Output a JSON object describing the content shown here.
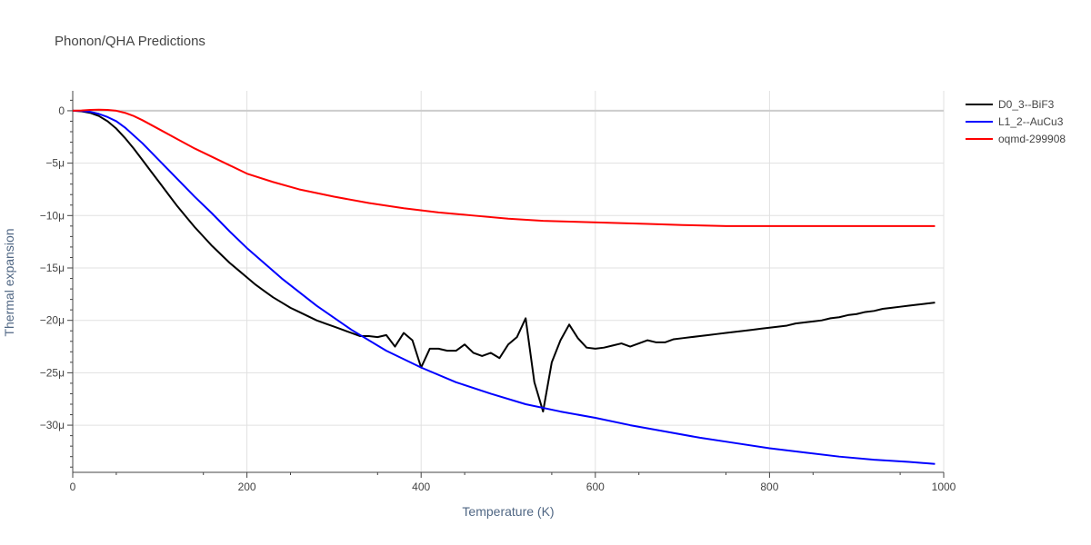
{
  "chart_data": {
    "type": "line",
    "title": "Phonon/QHA Predictions",
    "xlabel": "Temperature (K)",
    "ylabel": "Thermal expansion",
    "xlim": [
      0,
      1000
    ],
    "ylim": [
      -34.5,
      1.9
    ],
    "x_ticks": [
      {
        "value": 0,
        "label": "0"
      },
      {
        "value": 200,
        "label": "200"
      },
      {
        "value": 400,
        "label": "400"
      },
      {
        "value": 600,
        "label": "600"
      },
      {
        "value": 800,
        "label": "800"
      },
      {
        "value": 1000,
        "label": "1000"
      }
    ],
    "y_ticks": [
      {
        "value": 0,
        "label": "0"
      },
      {
        "value": -5,
        "label": "−5μ"
      },
      {
        "value": -10,
        "label": "−10μ"
      },
      {
        "value": -15,
        "label": "−15μ"
      },
      {
        "value": -20,
        "label": "−20μ"
      },
      {
        "value": -25,
        "label": "−25μ"
      },
      {
        "value": -30,
        "label": "−30μ"
      }
    ],
    "grid": true,
    "legend_position": "top-right",
    "series": [
      {
        "name": "D0_3--BiF3",
        "color": "#000000",
        "x": [
          0,
          10,
          20,
          30,
          40,
          50,
          60,
          70,
          80,
          90,
          100,
          110,
          120,
          130,
          140,
          150,
          160,
          170,
          180,
          190,
          200,
          210,
          220,
          230,
          240,
          250,
          260,
          270,
          280,
          290,
          300,
          310,
          320,
          330,
          340,
          350,
          360,
          370,
          380,
          390,
          400,
          410,
          420,
          430,
          440,
          450,
          460,
          470,
          480,
          490,
          500,
          510,
          520,
          530,
          540,
          550,
          560,
          570,
          580,
          590,
          600,
          610,
          620,
          630,
          640,
          650,
          660,
          670,
          680,
          690,
          700,
          710,
          720,
          730,
          740,
          750,
          760,
          770,
          780,
          790,
          800,
          810,
          820,
          830,
          840,
          850,
          860,
          870,
          880,
          890,
          900,
          910,
          920,
          930,
          940,
          950,
          960,
          970,
          980,
          990
        ],
        "values": [
          0,
          -0.05,
          -0.2,
          -0.5,
          -1.0,
          -1.7,
          -2.6,
          -3.6,
          -4.7,
          -5.8,
          -6.9,
          -8.0,
          -9.1,
          -10.1,
          -11.1,
          -12.0,
          -12.9,
          -13.7,
          -14.5,
          -15.2,
          -15.9,
          -16.6,
          -17.2,
          -17.8,
          -18.3,
          -18.8,
          -19.2,
          -19.6,
          -20.0,
          -20.3,
          -20.6,
          -20.9,
          -21.2,
          -21.5,
          -21.5,
          -21.6,
          -21.4,
          -22.5,
          -21.2,
          -21.9,
          -24.5,
          -22.7,
          -22.7,
          -22.9,
          -22.9,
          -22.3,
          -23.1,
          -23.4,
          -23.1,
          -23.6,
          -22.3,
          -21.6,
          -19.8,
          -25.9,
          -28.7,
          -24.0,
          -21.9,
          -20.4,
          -21.7,
          -22.6,
          -22.7,
          -22.6,
          -22.4,
          -22.2,
          -22.5,
          -22.2,
          -21.9,
          -22.1,
          -22.1,
          -21.8,
          -21.7,
          -21.6,
          -21.5,
          -21.4,
          -21.3,
          -21.2,
          -21.1,
          -21.0,
          -20.9,
          -20.8,
          -20.7,
          -20.6,
          -20.5,
          -20.3,
          -20.2,
          -20.1,
          -20.0,
          -19.8,
          -19.7,
          -19.5,
          -19.4,
          -19.2,
          -19.1,
          -18.9,
          -18.8,
          -18.7,
          -18.6,
          -18.5,
          -18.4,
          -18.3
        ]
      },
      {
        "name": "L1_2--AuCu3",
        "color": "#0000ff",
        "x": [
          0,
          10,
          20,
          30,
          40,
          50,
          60,
          80,
          100,
          120,
          140,
          160,
          180,
          200,
          240,
          280,
          320,
          360,
          400,
          440,
          480,
          520,
          560,
          600,
          640,
          680,
          720,
          760,
          800,
          840,
          880,
          920,
          960,
          990
        ],
        "values": [
          0,
          -0.02,
          -0.1,
          -0.3,
          -0.6,
          -1.0,
          -1.6,
          -3.1,
          -4.8,
          -6.5,
          -8.2,
          -9.8,
          -11.5,
          -13.1,
          -16.0,
          -18.6,
          -20.9,
          -22.9,
          -24.5,
          -25.9,
          -27.0,
          -28.0,
          -28.7,
          -29.3,
          -30.0,
          -30.6,
          -31.2,
          -31.7,
          -32.2,
          -32.6,
          -33.0,
          -33.3,
          -33.5,
          -33.7
        ]
      },
      {
        "name": "oqmd-299908",
        "color": "#ff0000",
        "x": [
          0,
          10,
          20,
          30,
          40,
          50,
          60,
          70,
          80,
          100,
          120,
          140,
          160,
          180,
          200,
          230,
          260,
          300,
          340,
          380,
          420,
          460,
          500,
          540,
          580,
          620,
          660,
          700,
          750,
          800,
          850,
          900,
          950,
          990
        ],
        "values": [
          0,
          0.03,
          0.08,
          0.1,
          0.08,
          0.0,
          -0.2,
          -0.5,
          -0.9,
          -1.8,
          -2.7,
          -3.6,
          -4.4,
          -5.2,
          -6.0,
          -6.8,
          -7.5,
          -8.2,
          -8.8,
          -9.3,
          -9.7,
          -10.0,
          -10.3,
          -10.5,
          -10.6,
          -10.7,
          -10.8,
          -10.9,
          -11.0,
          -11.0,
          -11.0,
          -11.0,
          -11.0,
          -11.0
        ]
      }
    ]
  }
}
